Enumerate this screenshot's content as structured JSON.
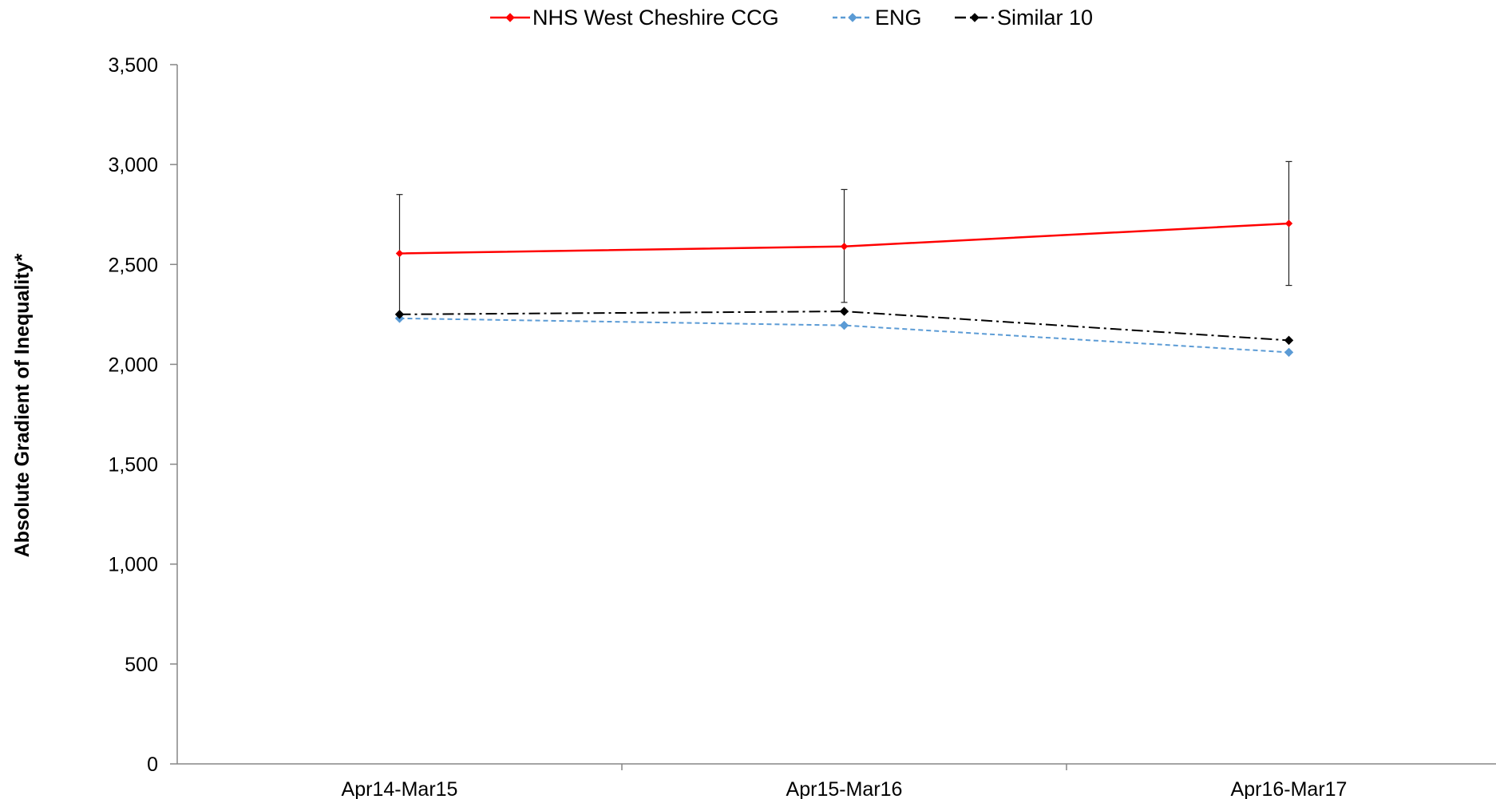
{
  "chart_data": {
    "type": "line",
    "title": "",
    "xlabel": "",
    "ylabel": "Absolute Gradient of Inequality*",
    "ylim": [
      0,
      3500
    ],
    "ytick_values": [
      0,
      500,
      1000,
      1500,
      2000,
      2500,
      3000,
      3500
    ],
    "ytick_labels": [
      "0",
      "500",
      "1,000",
      "1,500",
      "2,000",
      "2,500",
      "3,000",
      "3,500"
    ],
    "categories": [
      "Apr14-Mar15",
      "Apr15-Mar16",
      "Apr16-Mar17"
    ],
    "grid": false,
    "legend_position": "top",
    "series": [
      {
        "name": "NHS West Cheshire CCG",
        "values": [
          2555,
          2590,
          2705
        ],
        "error_low": [
          2250,
          2310,
          2395
        ],
        "error_high": [
          2850,
          2875,
          3015
        ],
        "color": "#ff0000",
        "line_style": "solid",
        "marker": "diamond"
      },
      {
        "name": "ENG",
        "values": [
          2230,
          2195,
          2060
        ],
        "color": "#5b9bd5",
        "line_style": "dashed",
        "marker": "diamond"
      },
      {
        "name": "Similar 10",
        "values": [
          2250,
          2265,
          2120
        ],
        "color": "#000000",
        "line_style": "dashdot",
        "marker": "diamond"
      }
    ]
  }
}
